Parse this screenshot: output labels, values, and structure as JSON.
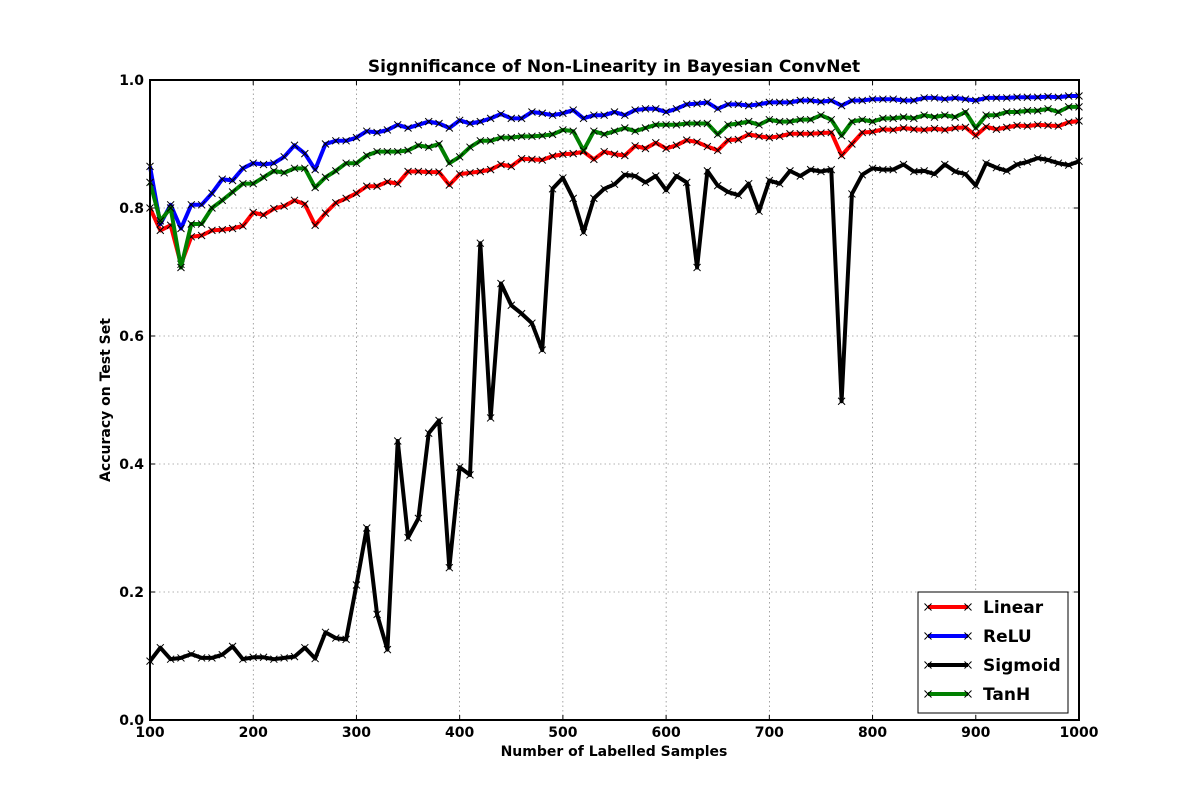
{
  "chart_data": {
    "type": "line",
    "title": "Signnificance of Non-Linearity in Bayesian ConvNet",
    "xlabel": "Number of Labelled Samples",
    "ylabel": "Accuracy on Test Set",
    "xlim": [
      100,
      1000
    ],
    "ylim": [
      0.0,
      1.0
    ],
    "xticks": [
      "100",
      "200",
      "300",
      "400",
      "500",
      "600",
      "700",
      "800",
      "900",
      "1000"
    ],
    "yticks": [
      "0.0",
      "0.2",
      "0.4",
      "0.6",
      "0.8",
      "1.0"
    ],
    "grid": true,
    "legend_position": "bottom-right",
    "x": [
      100,
      110,
      120,
      130,
      140,
      150,
      160,
      170,
      180,
      190,
      200,
      210,
      220,
      230,
      240,
      250,
      260,
      270,
      280,
      290,
      300,
      310,
      320,
      330,
      340,
      350,
      360,
      370,
      380,
      390,
      400,
      410,
      420,
      430,
      440,
      450,
      460,
      470,
      480,
      490,
      500,
      510,
      520,
      530,
      540,
      550,
      560,
      570,
      580,
      590,
      600,
      610,
      620,
      630,
      640,
      650,
      660,
      670,
      680,
      690,
      700,
      710,
      720,
      730,
      740,
      750,
      760,
      770,
      780,
      790,
      800,
      810,
      820,
      830,
      840,
      850,
      860,
      870,
      880,
      890,
      900,
      910,
      920,
      930,
      940,
      950,
      960,
      970,
      980,
      990,
      1000
    ],
    "series": [
      {
        "name": "Linear",
        "color": "#ff0000",
        "values": [
          0.8,
          0.765,
          0.773,
          0.712,
          0.755,
          0.757,
          0.765,
          0.766,
          0.768,
          0.772,
          0.793,
          0.789,
          0.799,
          0.803,
          0.812,
          0.806,
          0.773,
          0.792,
          0.808,
          0.815,
          0.823,
          0.834,
          0.834,
          0.841,
          0.838,
          0.857,
          0.857,
          0.856,
          0.856,
          0.836,
          0.853,
          0.855,
          0.857,
          0.86,
          0.868,
          0.865,
          0.877,
          0.876,
          0.875,
          0.881,
          0.884,
          0.885,
          0.888,
          0.876,
          0.888,
          0.884,
          0.882,
          0.897,
          0.893,
          0.902,
          0.893,
          0.898,
          0.906,
          0.903,
          0.896,
          0.89,
          0.906,
          0.907,
          0.915,
          0.912,
          0.91,
          0.912,
          0.916,
          0.916,
          0.916,
          0.917,
          0.918,
          0.882,
          0.9,
          0.918,
          0.919,
          0.923,
          0.922,
          0.925,
          0.923,
          0.922,
          0.924,
          0.922,
          0.925,
          0.926,
          0.913,
          0.927,
          0.923,
          0.926,
          0.929,
          0.928,
          0.93,
          0.929,
          0.928,
          0.934,
          0.936
        ]
      },
      {
        "name": "ReLU",
        "color": "#0000ff",
        "values": [
          0.865,
          0.775,
          0.805,
          0.768,
          0.805,
          0.805,
          0.823,
          0.845,
          0.843,
          0.862,
          0.87,
          0.868,
          0.87,
          0.88,
          0.898,
          0.885,
          0.86,
          0.9,
          0.905,
          0.905,
          0.91,
          0.92,
          0.918,
          0.922,
          0.93,
          0.925,
          0.93,
          0.935,
          0.932,
          0.925,
          0.937,
          0.932,
          0.935,
          0.94,
          0.947,
          0.94,
          0.94,
          0.95,
          0.948,
          0.945,
          0.948,
          0.953,
          0.94,
          0.945,
          0.945,
          0.95,
          0.945,
          0.953,
          0.955,
          0.955,
          0.95,
          0.955,
          0.962,
          0.963,
          0.965,
          0.955,
          0.962,
          0.962,
          0.96,
          0.962,
          0.965,
          0.965,
          0.965,
          0.968,
          0.968,
          0.966,
          0.968,
          0.96,
          0.968,
          0.968,
          0.97,
          0.97,
          0.97,
          0.968,
          0.968,
          0.972,
          0.972,
          0.97,
          0.972,
          0.97,
          0.968,
          0.972,
          0.972,
          0.972,
          0.973,
          0.973,
          0.973,
          0.974,
          0.973,
          0.975,
          0.975
        ]
      },
      {
        "name": "Sigmoid",
        "color": "#000000",
        "values": [
          0.092,
          0.113,
          0.095,
          0.097,
          0.103,
          0.097,
          0.097,
          0.102,
          0.115,
          0.095,
          0.098,
          0.098,
          0.095,
          0.097,
          0.099,
          0.113,
          0.096,
          0.137,
          0.128,
          0.126,
          0.211,
          0.3,
          0.165,
          0.11,
          0.436,
          0.285,
          0.315,
          0.448,
          0.468,
          0.238,
          0.395,
          0.383,
          0.745,
          0.472,
          0.682,
          0.648,
          0.635,
          0.62,
          0.578,
          0.83,
          0.847,
          0.815,
          0.762,
          0.815,
          0.83,
          0.837,
          0.852,
          0.85,
          0.84,
          0.85,
          0.828,
          0.85,
          0.84,
          0.707,
          0.858,
          0.835,
          0.825,
          0.82,
          0.838,
          0.795,
          0.843,
          0.838,
          0.858,
          0.85,
          0.86,
          0.857,
          0.86,
          0.498,
          0.822,
          0.852,
          0.862,
          0.86,
          0.86,
          0.868,
          0.857,
          0.858,
          0.853,
          0.868,
          0.857,
          0.853,
          0.835,
          0.87,
          0.863,
          0.858,
          0.868,
          0.872,
          0.878,
          0.875,
          0.87,
          0.867,
          0.873
        ]
      },
      {
        "name": "TanH",
        "color": "#008000",
        "values": [
          0.84,
          0.78,
          0.8,
          0.707,
          0.775,
          0.775,
          0.8,
          0.812,
          0.825,
          0.838,
          0.838,
          0.848,
          0.858,
          0.855,
          0.862,
          0.862,
          0.832,
          0.848,
          0.858,
          0.87,
          0.87,
          0.882,
          0.888,
          0.888,
          0.888,
          0.89,
          0.898,
          0.895,
          0.9,
          0.87,
          0.88,
          0.895,
          0.905,
          0.905,
          0.91,
          0.91,
          0.912,
          0.912,
          0.913,
          0.915,
          0.922,
          0.92,
          0.89,
          0.92,
          0.915,
          0.92,
          0.925,
          0.92,
          0.925,
          0.93,
          0.93,
          0.93,
          0.932,
          0.932,
          0.932,
          0.915,
          0.93,
          0.932,
          0.935,
          0.93,
          0.938,
          0.935,
          0.935,
          0.938,
          0.938,
          0.945,
          0.938,
          0.913,
          0.935,
          0.938,
          0.935,
          0.94,
          0.94,
          0.942,
          0.94,
          0.945,
          0.942,
          0.945,
          0.942,
          0.95,
          0.925,
          0.945,
          0.945,
          0.95,
          0.95,
          0.952,
          0.952,
          0.955,
          0.95,
          0.958,
          0.958
        ]
      }
    ]
  }
}
